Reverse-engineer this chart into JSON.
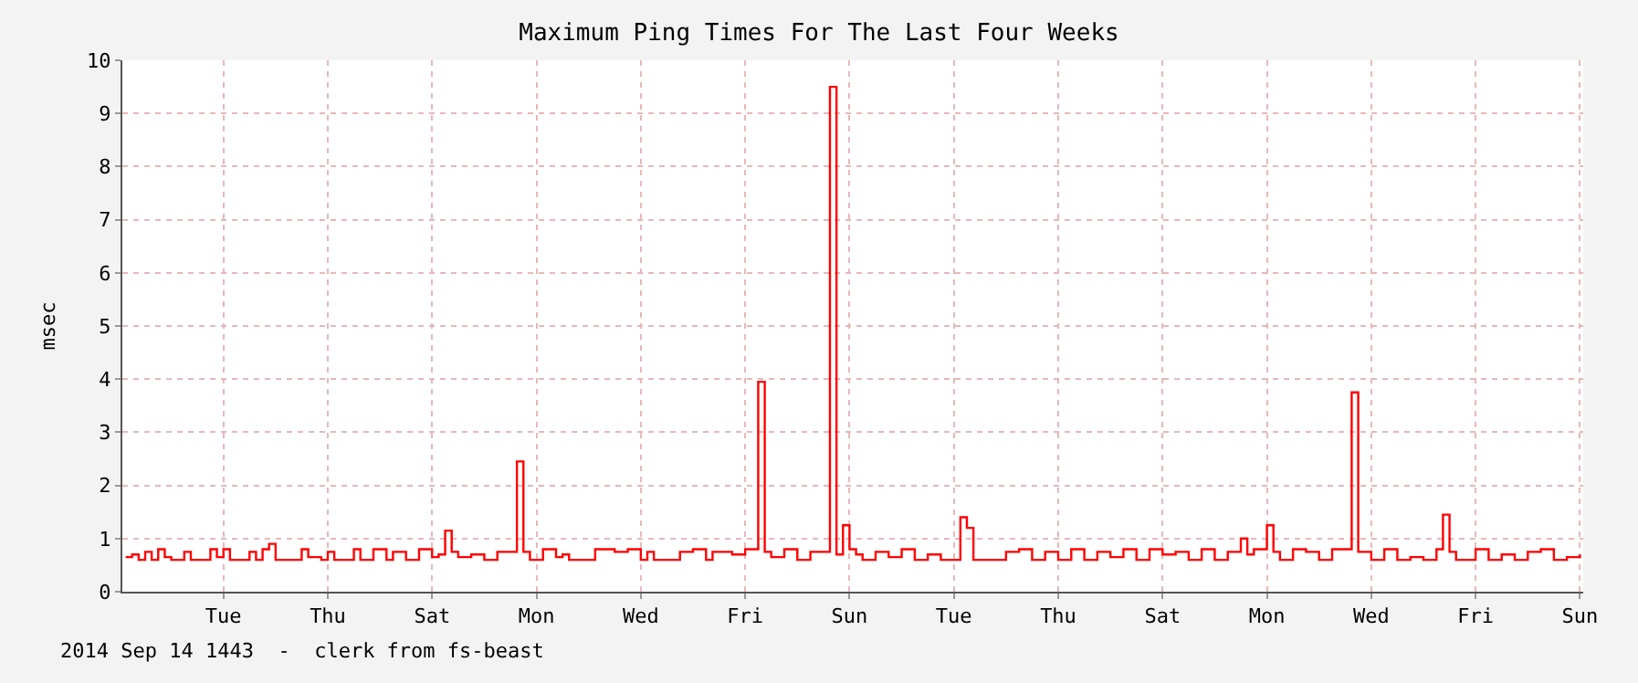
{
  "chart_data": {
    "type": "step",
    "title": "Maximum Ping Times For The Last Four Weeks",
    "ylabel": "msec",
    "annotations": [
      "2014 Sep 14 1443  -  clerk from fs-beast"
    ],
    "categories": [
      null,
      null,
      null,
      null,
      null,
      null,
      null,
      null,
      null,
      null,
      null,
      null,
      null,
      null,
      null,
      "Tue",
      null,
      null,
      null,
      null,
      null,
      null,
      null,
      null,
      null,
      null,
      null,
      null,
      null,
      null,
      null,
      "Thu",
      null,
      null,
      null,
      null,
      null,
      null,
      null,
      null,
      null,
      null,
      null,
      null,
      null,
      null,
      null,
      "Sat",
      null,
      null,
      null,
      null,
      null,
      null,
      null,
      null,
      null,
      null,
      null,
      null,
      null,
      null,
      null,
      "Mon",
      null,
      null,
      null,
      null,
      null,
      null,
      null,
      null,
      null,
      null,
      null,
      null,
      null,
      null,
      null,
      "Wed",
      null,
      null,
      null,
      null,
      null,
      null,
      null,
      null,
      null,
      null,
      null,
      null,
      null,
      null,
      null,
      "Fri",
      null,
      null,
      null,
      null,
      null,
      null,
      null,
      null,
      null,
      null,
      null,
      null,
      null,
      null,
      null,
      "Sun",
      null,
      null,
      null,
      null,
      null,
      null,
      null,
      null,
      null,
      null,
      null,
      null,
      null,
      null,
      null,
      "Tue",
      null,
      null,
      null,
      null,
      null,
      null,
      null,
      null,
      null,
      null,
      null,
      null,
      null,
      null,
      null,
      "Thu",
      null,
      null,
      null,
      null,
      null,
      null,
      null,
      null,
      null,
      null,
      null,
      null,
      null,
      null,
      null,
      "Sat",
      null,
      null,
      null,
      null,
      null,
      null,
      null,
      null,
      null,
      null,
      null,
      null,
      null,
      null,
      null,
      "Mon",
      null,
      null,
      null,
      null,
      null,
      null,
      null,
      null,
      null,
      null,
      null,
      null,
      null,
      null,
      null,
      "Wed",
      null,
      null,
      null,
      null,
      null,
      null,
      null,
      null,
      null,
      null,
      null,
      null,
      null,
      null,
      null,
      "Fri",
      null,
      null,
      null,
      null,
      null,
      null,
      null,
      null,
      null,
      null,
      null,
      null,
      null,
      null,
      null,
      "Sun"
    ],
    "ylim": [
      0,
      10
    ],
    "yticks": [
      0,
      1,
      2,
      3,
      4,
      5,
      6,
      7,
      8,
      9,
      10
    ],
    "grid": true,
    "marker": "none",
    "line_style": "solid",
    "series": [
      {
        "color": "#ff0000",
        "values": [
          0.65,
          0.7,
          0.6,
          0.75,
          0.6,
          0.8,
          0.65,
          0.6,
          0.6,
          0.75,
          0.6,
          0.6,
          0.6,
          0.8,
          0.65,
          0.8,
          0.6,
          0.6,
          0.6,
          0.75,
          0.6,
          0.8,
          0.9,
          0.6,
          0.6,
          0.6,
          0.6,
          0.8,
          0.65,
          0.65,
          0.6,
          0.75,
          0.6,
          0.6,
          0.6,
          0.8,
          0.6,
          0.6,
          0.8,
          0.8,
          0.6,
          0.75,
          0.75,
          0.6,
          0.6,
          0.8,
          0.8,
          0.65,
          0.7,
          1.15,
          0.75,
          0.65,
          0.65,
          0.7,
          0.7,
          0.6,
          0.6,
          0.75,
          0.75,
          0.75,
          2.45,
          0.75,
          0.6,
          0.6,
          0.8,
          0.8,
          0.65,
          0.7,
          0.6,
          0.6,
          0.6,
          0.6,
          0.8,
          0.8,
          0.8,
          0.75,
          0.75,
          0.8,
          0.8,
          0.6,
          0.75,
          0.6,
          0.6,
          0.6,
          0.6,
          0.75,
          0.75,
          0.8,
          0.8,
          0.6,
          0.75,
          0.75,
          0.75,
          0.7,
          0.7,
          0.8,
          0.8,
          3.95,
          0.75,
          0.65,
          0.65,
          0.8,
          0.8,
          0.6,
          0.6,
          0.75,
          0.75,
          0.75,
          9.5,
          0.7,
          1.25,
          0.8,
          0.7,
          0.6,
          0.6,
          0.75,
          0.75,
          0.65,
          0.65,
          0.8,
          0.8,
          0.6,
          0.6,
          0.7,
          0.7,
          0.6,
          0.6,
          0.6,
          1.4,
          1.2,
          0.6,
          0.6,
          0.6,
          0.6,
          0.6,
          0.75,
          0.75,
          0.8,
          0.8,
          0.6,
          0.6,
          0.75,
          0.75,
          0.6,
          0.6,
          0.8,
          0.8,
          0.6,
          0.6,
          0.75,
          0.75,
          0.65,
          0.65,
          0.8,
          0.8,
          0.6,
          0.6,
          0.8,
          0.8,
          0.7,
          0.7,
          0.75,
          0.75,
          0.6,
          0.6,
          0.8,
          0.8,
          0.6,
          0.6,
          0.75,
          0.75,
          1.0,
          0.7,
          0.8,
          0.8,
          1.25,
          0.75,
          0.6,
          0.6,
          0.8,
          0.8,
          0.75,
          0.75,
          0.6,
          0.6,
          0.8,
          0.8,
          0.8,
          3.75,
          0.75,
          0.75,
          0.6,
          0.6,
          0.8,
          0.8,
          0.6,
          0.6,
          0.65,
          0.65,
          0.6,
          0.6,
          0.8,
          1.45,
          0.75,
          0.6,
          0.6,
          0.6,
          0.8,
          0.8,
          0.6,
          0.6,
          0.7,
          0.7,
          0.6,
          0.6,
          0.75,
          0.75,
          0.8,
          0.8,
          0.6,
          0.6,
          0.65,
          0.65,
          0.7
        ]
      }
    ]
  }
}
